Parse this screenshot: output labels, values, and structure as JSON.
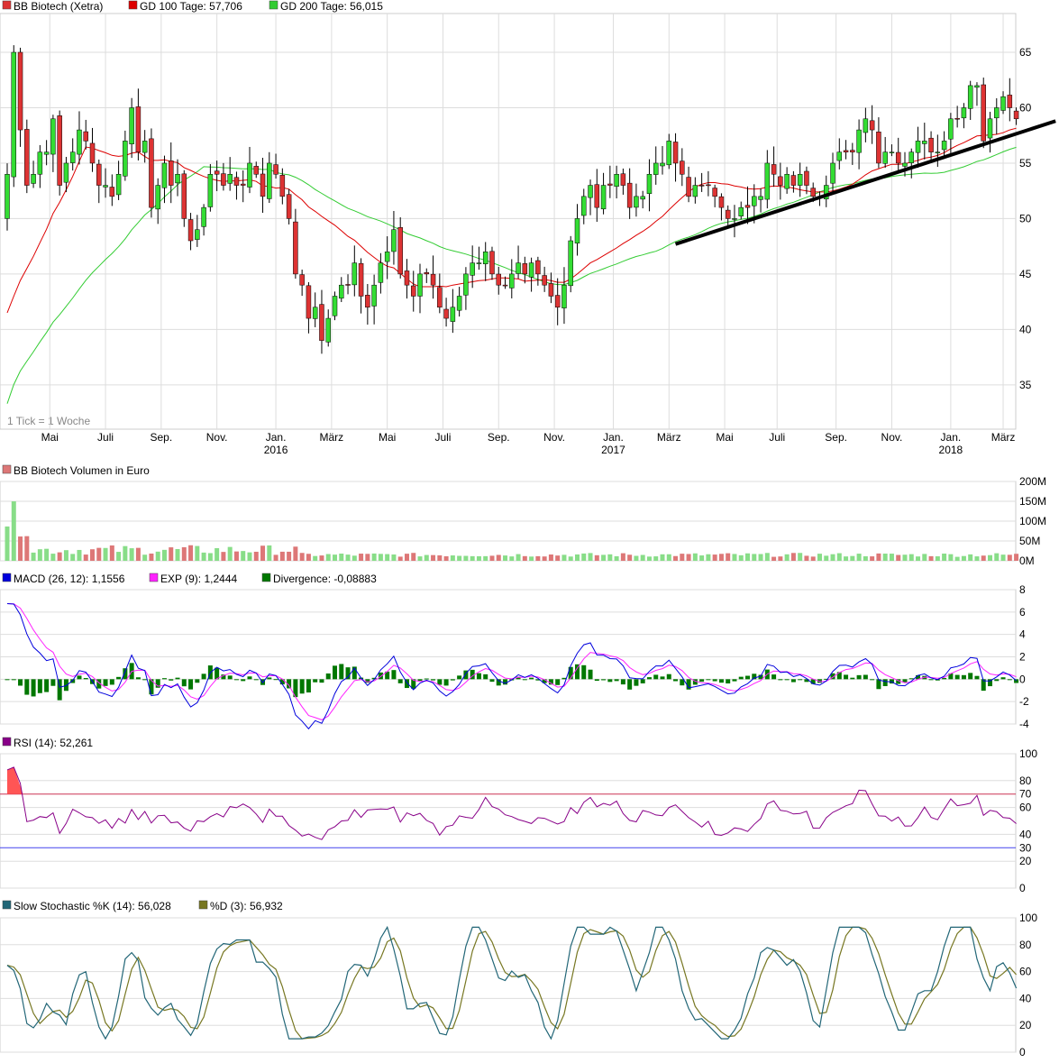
{
  "colors": {
    "up": "#33dd33",
    "down": "#dd3333",
    "gd100": "#dd0000",
    "gd200": "#33cc33",
    "trend": "#000000",
    "vol_up": "#88dd88",
    "vol_down": "#dd7777",
    "macd": "#0000dd",
    "exp": "#ff22ff",
    "divergence": "#007700",
    "rsi": "#880088",
    "rsi_fill": "#ff5555",
    "rsi70": "#cc3355",
    "rsi30": "#4444ee",
    "slowk": "#226677",
    "slowd": "#777722",
    "grid": "#dddddd"
  },
  "panels": {
    "price": {
      "legend": [
        {
          "label": "BB Biotech (Xetra)",
          "color": "#dd3333"
        },
        {
          "label": "GD 100 Tage: 57,706",
          "color": "#dd0000"
        },
        {
          "label": "GD 200 Tage: 56,015",
          "color": "#33cc33"
        }
      ],
      "note": "1 Tick = 1 Woche",
      "y_ticks": [
        35,
        40,
        45,
        50,
        55,
        60,
        65
      ],
      "months": [
        {
          "label": "Mai",
          "week": 6.5
        },
        {
          "label": "Juli",
          "week": 15
        },
        {
          "label": "Sep.",
          "week": 23.5
        },
        {
          "label": "Nov.",
          "week": 32
        },
        {
          "label": "Jan.",
          "week": 41,
          "year": "2016"
        },
        {
          "label": "März",
          "week": 49.5
        },
        {
          "label": "Mai",
          "week": 58
        },
        {
          "label": "Juli",
          "week": 66.5
        },
        {
          "label": "Sep.",
          "week": 75
        },
        {
          "label": "Nov.",
          "week": 83.5
        },
        {
          "label": "Jan.",
          "week": 92.5,
          "year": "2017"
        },
        {
          "label": "März",
          "week": 101
        },
        {
          "label": "Mai",
          "week": 109.5
        },
        {
          "label": "Juli",
          "week": 117.5
        },
        {
          "label": "Sep.",
          "week": 126.5
        },
        {
          "label": "Nov.",
          "week": 135
        },
        {
          "label": "Jan.",
          "week": 144,
          "year": "2018"
        },
        {
          "label": "März",
          "week": 152
        }
      ]
    },
    "volume": {
      "legend": [
        {
          "label": "BB Biotech Volumen in Euro",
          "color": "#dd7777"
        }
      ],
      "y_ticks": [
        "0M",
        "50M",
        "100M",
        "150M",
        "200M"
      ]
    },
    "macd": {
      "legend": [
        {
          "label": "MACD (26, 12): 1,1556",
          "color": "#0000dd"
        },
        {
          "label": "EXP (9): 1,2444",
          "color": "#ff22ff"
        },
        {
          "label": "Divergence: -0,08883",
          "color": "#007700"
        }
      ],
      "y_ticks": [
        -4,
        -2,
        0,
        2,
        4,
        6,
        8
      ]
    },
    "rsi": {
      "legend": [
        {
          "label": "RSI (14): 52,261",
          "color": "#880088"
        }
      ],
      "y_ticks": [
        0,
        20,
        40,
        60,
        80,
        100
      ],
      "label70": "70",
      "label30": "30"
    },
    "stoch": {
      "legend": [
        {
          "label": "Slow Stochastic %K (14): 56,028",
          "color": "#226677"
        },
        {
          "label": "%D (3): 56,932",
          "color": "#777722"
        }
      ],
      "y_ticks": [
        0,
        20,
        40,
        60,
        80,
        100
      ]
    }
  },
  "chart_data": [
    {
      "type": "candlestick",
      "title": "BB Biotech (Xetra)",
      "x_unit": "week",
      "ylim": [
        31,
        68.5
      ],
      "close_anchors": [
        [
          0,
          54
        ],
        [
          1,
          65
        ],
        [
          2,
          58
        ],
        [
          3,
          53
        ],
        [
          4,
          54
        ],
        [
          5,
          56
        ],
        [
          6,
          56
        ],
        [
          7,
          59
        ],
        [
          8,
          53
        ],
        [
          9,
          55
        ],
        [
          10,
          56
        ],
        [
          11,
          58
        ],
        [
          12,
          57
        ],
        [
          13,
          55
        ],
        [
          14,
          53
        ],
        [
          15,
          53
        ],
        [
          16,
          52
        ],
        [
          17,
          54
        ],
        [
          18,
          57
        ],
        [
          19,
          60
        ],
        [
          20,
          56
        ],
        [
          21,
          57
        ],
        [
          22,
          51
        ],
        [
          23,
          53
        ],
        [
          24,
          55
        ],
        [
          25,
          53
        ],
        [
          26,
          54
        ],
        [
          27,
          50
        ],
        [
          28,
          48
        ],
        [
          29,
          49
        ],
        [
          30,
          51
        ],
        [
          31,
          54
        ],
        [
          32,
          54
        ],
        [
          33,
          53
        ],
        [
          34,
          54
        ],
        [
          35,
          53
        ],
        [
          36,
          53
        ],
        [
          37,
          55
        ],
        [
          38,
          54
        ],
        [
          39,
          52
        ],
        [
          40,
          55
        ],
        [
          41,
          54
        ],
        [
          42,
          52
        ],
        [
          43,
          50
        ],
        [
          44,
          45
        ],
        [
          45,
          44
        ],
        [
          46,
          41
        ],
        [
          47,
          42
        ],
        [
          48,
          39
        ],
        [
          49,
          41
        ],
        [
          50,
          43
        ],
        [
          51,
          44
        ],
        [
          52,
          44
        ],
        [
          53,
          46
        ],
        [
          54,
          43
        ],
        [
          55,
          42
        ],
        [
          56,
          44
        ],
        [
          57,
          46
        ],
        [
          58,
          47
        ],
        [
          59,
          49
        ],
        [
          60,
          45
        ],
        [
          61,
          44
        ],
        [
          62,
          43
        ],
        [
          63,
          45
        ],
        [
          64,
          45
        ],
        [
          65,
          44
        ],
        [
          66,
          42
        ],
        [
          67,
          41
        ],
        [
          68,
          42
        ],
        [
          69,
          43
        ],
        [
          70,
          45
        ],
        [
          71,
          46
        ],
        [
          72,
          46
        ],
        [
          73,
          47
        ],
        [
          74,
          45
        ],
        [
          75,
          44
        ],
        [
          76,
          44
        ],
        [
          77,
          45
        ],
        [
          78,
          46
        ],
        [
          79,
          45
        ],
        [
          80,
          46
        ],
        [
          81,
          45
        ],
        [
          82,
          44
        ],
        [
          83,
          43
        ],
        [
          84,
          42
        ],
        [
          85,
          44
        ],
        [
          86,
          48
        ],
        [
          87,
          50
        ],
        [
          88,
          52
        ],
        [
          89,
          53
        ],
        [
          90,
          51
        ],
        [
          91,
          53
        ],
        [
          92,
          53
        ],
        [
          93,
          54
        ],
        [
          94,
          53
        ],
        [
          95,
          51
        ],
        [
          96,
          52
        ],
        [
          97,
          52
        ],
        [
          98,
          54
        ],
        [
          99,
          55
        ],
        [
          100,
          55
        ],
        [
          101,
          57
        ],
        [
          102,
          55
        ],
        [
          103,
          54
        ],
        [
          104,
          52
        ],
        [
          105,
          53
        ],
        [
          106,
          53
        ],
        [
          107,
          53
        ],
        [
          108,
          52
        ],
        [
          109,
          51
        ],
        [
          110,
          50
        ],
        [
          111,
          50
        ],
        [
          112,
          51
        ],
        [
          113,
          51
        ],
        [
          114,
          52
        ],
        [
          115,
          52
        ],
        [
          116,
          55
        ],
        [
          117,
          54
        ],
        [
          118,
          53
        ],
        [
          119,
          54
        ],
        [
          120,
          53
        ],
        [
          121,
          54
        ],
        [
          122,
          53
        ],
        [
          123,
          52
        ],
        [
          124,
          52
        ],
        [
          125,
          53
        ],
        [
          126,
          55
        ],
        [
          127,
          56
        ],
        [
          128,
          56
        ],
        [
          129,
          56
        ],
        [
          130,
          58
        ],
        [
          131,
          59
        ],
        [
          132,
          58
        ],
        [
          133,
          55
        ],
        [
          134,
          56
        ],
        [
          135,
          56
        ],
        [
          136,
          55
        ],
        [
          137,
          55
        ],
        [
          138,
          56
        ],
        [
          139,
          57
        ],
        [
          140,
          57
        ],
        [
          141,
          56
        ],
        [
          142,
          56
        ],
        [
          143,
          57
        ],
        [
          144,
          59
        ],
        [
          145,
          59
        ],
        [
          146,
          60
        ],
        [
          147,
          62
        ],
        [
          148,
          62
        ],
        [
          149,
          57
        ],
        [
          150,
          59
        ],
        [
          151,
          60
        ],
        [
          152,
          61
        ],
        [
          153,
          60
        ],
        [
          154,
          59
        ]
      ],
      "range_notes": {
        "high_max": 67,
        "low_min": 35.5
      },
      "series": [
        {
          "name": "GD 100 Tage",
          "last": 57.706
        },
        {
          "name": "GD 200 Tage",
          "last": 56.015
        }
      ],
      "trendline": {
        "from_week": 102,
        "from_value": 47.7,
        "to_week": 160,
        "to_value": 58.8
      },
      "yticks": [
        35,
        40,
        45,
        50,
        55,
        60,
        65
      ]
    },
    {
      "type": "bar",
      "title": "BB Biotech Volumen in Euro",
      "ylim": [
        0,
        200
      ],
      "unit": "M",
      "levels": {
        "early_peak": 150,
        "typical": 15,
        "late": 10
      }
    },
    {
      "type": "line",
      "title": "MACD (26, 12)",
      "ylim": [
        -4,
        8
      ],
      "series": [
        {
          "name": "MACD (26, 12)",
          "last": 1.1556
        },
        {
          "name": "EXP (9)",
          "last": 1.2444
        },
        {
          "name": "Divergence",
          "last": -0.08883
        }
      ]
    },
    {
      "type": "line",
      "title": "RSI (14)",
      "ylim": [
        0,
        100
      ],
      "bands": [
        70,
        30
      ],
      "series": [
        {
          "name": "RSI (14)",
          "last": 52.261
        }
      ]
    },
    {
      "type": "line",
      "title": "Slow Stochastic",
      "ylim": [
        0,
        100
      ],
      "series": [
        {
          "name": "Slow Stochastic %K (14)",
          "last": 56.028
        },
        {
          "name": "%D (3)",
          "last": 56.932
        }
      ]
    }
  ]
}
